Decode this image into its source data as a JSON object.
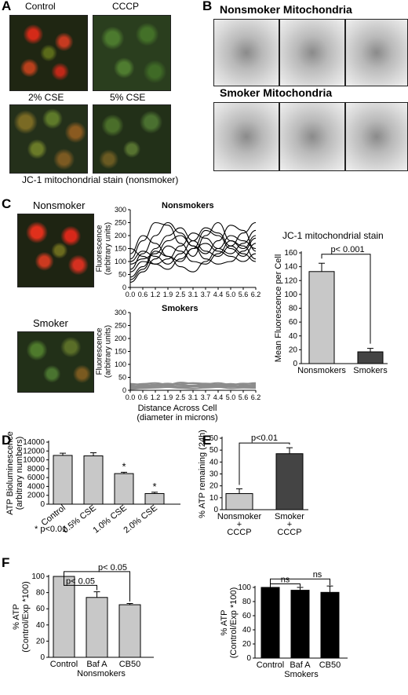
{
  "panels": {
    "A": {
      "label": "A",
      "images": [
        "Control",
        "CCCP",
        "2% CSE",
        "5% CSE"
      ],
      "caption": "JC-1 mitochondrial stain  (nonsmoker)"
    },
    "B": {
      "label": "B",
      "row1": "Nonsmoker Mitochondria",
      "row2": "Smoker Mitochondria"
    },
    "C": {
      "label": "C",
      "img_nonsmoker": "Nonsmoker",
      "img_smoker": "Smoker",
      "bar_title": "JC-1 mitochondrial stain"
    },
    "D": {
      "label": "D",
      "footnote": "* p<0.01"
    },
    "E": {
      "label": "E"
    },
    "F": {
      "label": "F"
    }
  },
  "colors": {
    "light_gray": "#c8c8c8",
    "dark_gray": "#444444",
    "black": "#000000",
    "trace_gray": "#8c8c8c"
  },
  "chart_data": [
    {
      "id": "C-line-nonsmokers",
      "type": "line",
      "title": "Nonsmokers",
      "ylabel": "Fluorescence\n(arbitrary units)",
      "x_ticks": [
        "0.0",
        "0.6",
        "1.2",
        "1.9",
        "2.5",
        "3.1",
        "3.7",
        "4.4",
        "5.0",
        "5.6",
        "6.2"
      ],
      "ylim": [
        0,
        300
      ],
      "y_ticks": [
        0,
        50,
        100,
        150,
        200,
        250,
        300
      ],
      "series": [
        {
          "values": [
            110,
            180,
            250,
            240,
            170,
            120,
            200,
            250,
            180,
            150,
            200
          ]
        },
        {
          "values": [
            70,
            130,
            200,
            250,
            210,
            160,
            130,
            180,
            240,
            220,
            140
          ]
        },
        {
          "values": [
            40,
            80,
            150,
            200,
            230,
            180,
            140,
            120,
            160,
            210,
            250
          ]
        },
        {
          "values": [
            130,
            200,
            170,
            120,
            100,
            150,
            220,
            200,
            150,
            120,
            170
          ]
        },
        {
          "values": [
            20,
            60,
            110,
            160,
            140,
            100,
            90,
            130,
            180,
            160,
            110
          ]
        },
        {
          "values": [
            90,
            110,
            130,
            180,
            200,
            160,
            110,
            90,
            100,
            140,
            190
          ]
        },
        {
          "values": [
            60,
            100,
            90,
            70,
            110,
            150,
            170,
            140,
            120,
            100,
            130
          ]
        },
        {
          "values": [
            150,
            120,
            90,
            110,
            160,
            210,
            190,
            150,
            130,
            170,
            220
          ]
        },
        {
          "values": [
            30,
            70,
            140,
            120,
            80,
            60,
            100,
            150,
            200,
            180,
            150
          ]
        },
        {
          "values": [
            100,
            140,
            120,
            90,
            130,
            180,
            230,
            210,
            160,
            130,
            100
          ]
        }
      ]
    },
    {
      "id": "C-line-smokers",
      "type": "line",
      "title": "Smokers",
      "ylabel": "Fluorescence\n(arbitrary units)",
      "xlabel": "Distance Across Cell\n(diameter in microns)",
      "x_ticks": [
        "0.0",
        "0.6",
        "1.2",
        "1.9",
        "2.5",
        "3.1",
        "3.7",
        "4.4",
        "5.0",
        "5.6",
        "6.2"
      ],
      "ylim": [
        0,
        300
      ],
      "y_ticks": [
        0,
        50,
        100,
        150,
        200,
        250,
        300
      ],
      "series": [
        {
          "values": [
            20,
            25,
            28,
            22,
            30,
            26,
            24,
            28,
            22,
            26,
            24
          ]
        },
        {
          "values": [
            15,
            18,
            22,
            26,
            20,
            18,
            22,
            20,
            25,
            20,
            18
          ]
        },
        {
          "values": [
            10,
            12,
            15,
            18,
            14,
            16,
            12,
            15,
            18,
            14,
            12
          ]
        },
        {
          "values": [
            25,
            22,
            18,
            20,
            24,
            28,
            26,
            22,
            20,
            24,
            28
          ]
        },
        {
          "values": [
            5,
            8,
            10,
            12,
            9,
            7,
            10,
            12,
            8,
            10,
            9
          ]
        },
        {
          "values": [
            12,
            16,
            20,
            16,
            12,
            14,
            18,
            16,
            14,
            16,
            20
          ]
        }
      ]
    },
    {
      "id": "C-bar",
      "type": "bar",
      "ylabel": "Mean Fluorescence per Cell",
      "categories": [
        "Nonsmokers",
        "Smokers"
      ],
      "values": [
        133,
        17
      ],
      "errors": [
        12,
        5
      ],
      "colors": [
        "#c8c8c8",
        "#444444"
      ],
      "ylim": [
        0,
        160
      ],
      "y_ticks": [
        0,
        20,
        40,
        60,
        80,
        100,
        120,
        140,
        160
      ],
      "annotation": "p< 0.001"
    },
    {
      "id": "D",
      "type": "bar",
      "ylabel": "ATP Bioluminescence\n(arbitrary numbers)",
      "categories": [
        "Control",
        "0.5% CSE",
        "1.0% CSE",
        "2.0% CSE"
      ],
      "values": [
        11000,
        10900,
        6900,
        2400
      ],
      "errors": [
        500,
        700,
        300,
        300
      ],
      "stars": [
        "",
        "",
        "*",
        "*"
      ],
      "ylim": [
        0,
        14000
      ],
      "y_ticks": [
        0,
        2000,
        4000,
        6000,
        8000,
        10000,
        12000,
        14000
      ]
    },
    {
      "id": "E",
      "type": "bar",
      "ylabel": "% ATP remaining (24h)",
      "categories": [
        "Nonsmoker\n+\nCCCP",
        "Smoker\n+\nCCCP"
      ],
      "values": [
        13.5,
        47
      ],
      "errors": [
        4,
        5
      ],
      "colors": [
        "#c8c8c8",
        "#444444"
      ],
      "ylim": [
        0,
        60
      ],
      "y_ticks": [
        0,
        10,
        20,
        30,
        40,
        50,
        60
      ],
      "annotation": "p<0.01"
    },
    {
      "id": "F-left",
      "type": "bar",
      "ylabel": "% ATP\n(Control/Exp *100)",
      "xlabel": "Nonsmokers",
      "categories": [
        "Control",
        "Baf A",
        "CB50"
      ],
      "values": [
        100,
        74,
        65
      ],
      "errors": [
        0,
        7,
        1.5
      ],
      "colors": [
        "#c8c8c8",
        "#c8c8c8",
        "#c8c8c8"
      ],
      "ylim": [
        0,
        100
      ],
      "y_ticks": [
        0,
        20,
        40,
        60,
        80,
        100
      ],
      "annotations": [
        "p< 0.05",
        "p< 0.05"
      ]
    },
    {
      "id": "F-right",
      "type": "bar",
      "ylabel": "% ATP\n(Control/Exp *100)",
      "xlabel": "Smokers",
      "categories": [
        "Control",
        "Baf A",
        "CB50"
      ],
      "values": [
        100,
        96,
        93
      ],
      "errors": [
        0,
        4,
        9
      ],
      "colors": [
        "#000000",
        "#000000",
        "#000000"
      ],
      "ylim": [
        0,
        100
      ],
      "y_ticks": [
        0,
        20,
        40,
        60,
        80,
        100
      ],
      "annotations": [
        "ns",
        "ns"
      ]
    }
  ]
}
